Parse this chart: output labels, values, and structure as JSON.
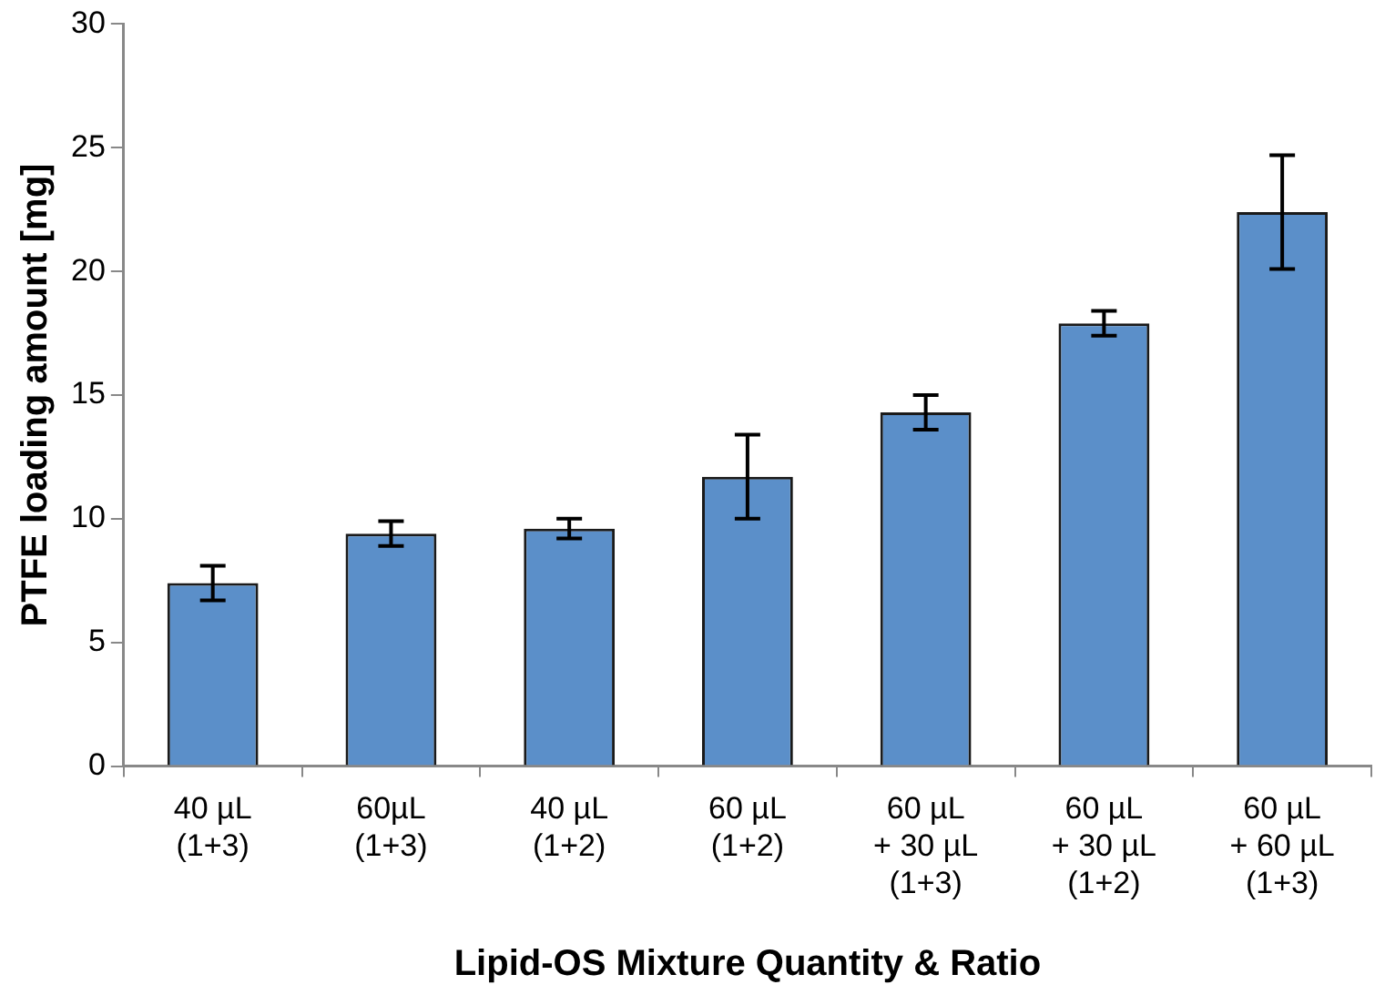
{
  "chart_data": {
    "type": "bar",
    "xlabel": "Lipid-OS Mixture Quantity & Ratio",
    "ylabel": "PTFE loading amount [mg]",
    "categories": [
      "40 µL\n(1+3)",
      "60µL\n(1+3)",
      "40 µL\n(1+2)",
      "60 µL\n(1+2)",
      "60 µL\n+ 30 µL\n(1+3)",
      "60 µL\n+ 30 µL\n(1+2)",
      "60 µL\n+ 60 µL\n(1+3)"
    ],
    "values": [
      7.4,
      9.4,
      9.6,
      11.7,
      14.3,
      17.9,
      22.4
    ],
    "errors": [
      0.7,
      0.5,
      0.4,
      1.7,
      0.7,
      0.5,
      2.3
    ],
    "color": "#5b8fc9",
    "ylim": [
      0,
      30
    ],
    "yticks": [
      0,
      5,
      10,
      15,
      20,
      25,
      30
    ],
    "grid": false,
    "legend": false
  }
}
